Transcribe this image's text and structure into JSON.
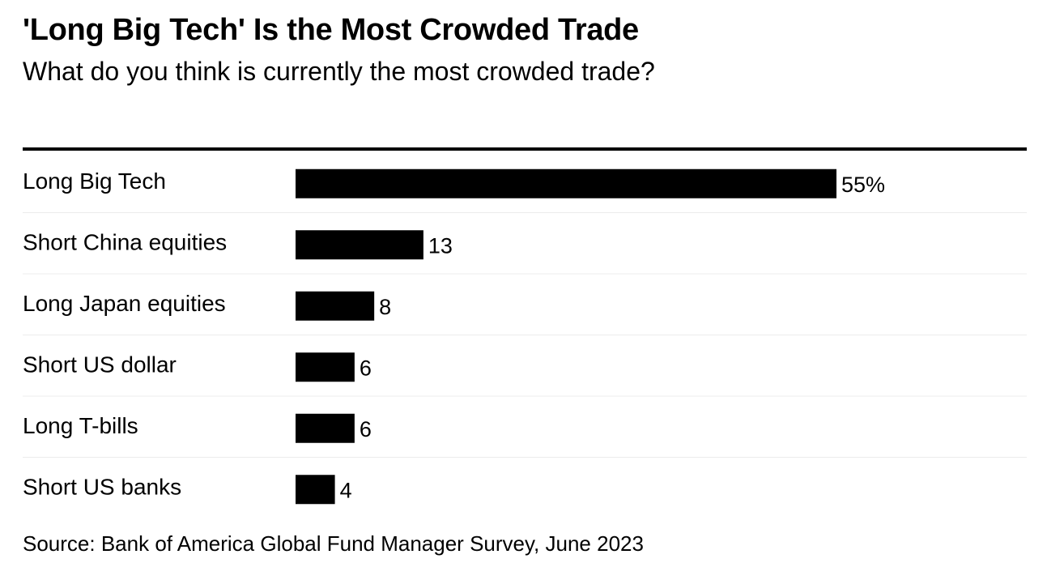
{
  "header": {
    "title": "'Long Big Tech' Is the Most Crowded Trade",
    "subtitle": "What do you think is currently the most crowded trade?"
  },
  "footer": {
    "source": "Source: Bank of America Global Fund Manager Survey, June 2023"
  },
  "chart_data": {
    "type": "bar",
    "orientation": "horizontal",
    "title": "'Long Big Tech' Is the Most Crowded Trade",
    "subtitle": "What do you think is currently the most crowded trade?",
    "categories": [
      "Long Big Tech",
      "Short China equities",
      "Long Japan equities",
      "Short US dollar",
      "Long T-bills",
      "Short US banks"
    ],
    "values": [
      55,
      13,
      8,
      6,
      6,
      4
    ],
    "data_labels": [
      "55%",
      "13",
      "8",
      "6",
      "6",
      "4"
    ],
    "unit": "%",
    "xlim": [
      0,
      55
    ],
    "grid": false,
    "legend": "none",
    "bar_color": "#000000"
  }
}
